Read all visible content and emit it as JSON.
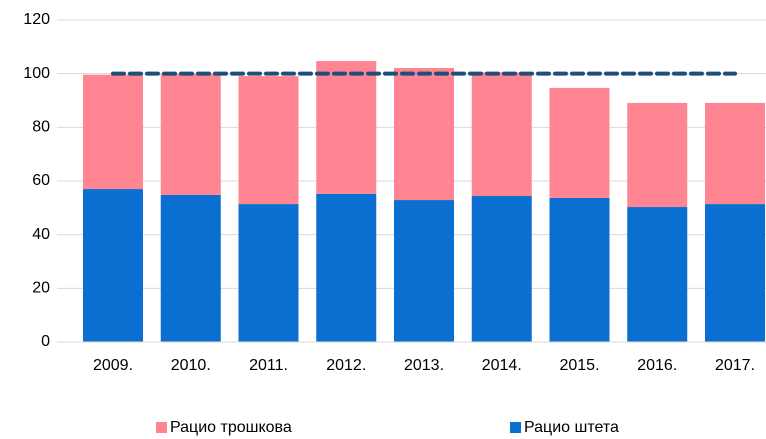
{
  "chart_data": {
    "type": "stacked_bar",
    "categories": [
      "2009.",
      "2010.",
      "2011.",
      "2012.",
      "2013.",
      "2014.",
      "2015.",
      "2016.",
      "2017."
    ],
    "series": [
      {
        "name": "Рацио штета",
        "color": "#0a6fd1",
        "values": [
          57.0,
          54.8,
          51.4,
          55.2,
          52.9,
          54.4,
          53.7,
          50.3,
          51.4
        ]
      },
      {
        "name": "Рацио трошкова",
        "color": "#ff8593",
        "values": [
          42.6,
          45.2,
          47.7,
          49.5,
          49.2,
          46.1,
          41.0,
          38.8,
          37.7
        ]
      }
    ],
    "reference_line": {
      "color": "#1f4e79",
      "values": [
        100,
        100,
        100,
        100,
        100,
        100,
        100,
        100,
        100
      ]
    },
    "ylim": [
      0,
      120
    ],
    "yticks": [
      0,
      20,
      40,
      60,
      80,
      100,
      120
    ],
    "grid": true,
    "legend": "bottom"
  }
}
